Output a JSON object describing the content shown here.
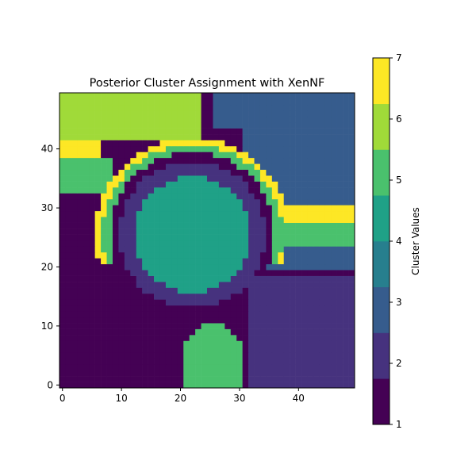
{
  "chart_data": {
    "type": "heatmap",
    "title": "Posterior Cluster Assignment with XenNF",
    "xlabel": "",
    "ylabel": "",
    "grid": false,
    "origin": "lower",
    "xlim": [
      -0.5,
      49.5
    ],
    "ylim": [
      -0.5,
      49.5
    ],
    "xticks": [
      0,
      10,
      20,
      30,
      40
    ],
    "yticks": [
      0,
      10,
      20,
      30,
      40
    ],
    "colorbar": {
      "label": "Cluster Values",
      "range": [
        1,
        7
      ],
      "ticks": [
        1,
        2,
        3,
        4,
        5,
        6,
        7
      ],
      "levels": 8,
      "colors": [
        "#440154",
        "#46327e",
        "#365c8d",
        "#277f8e",
        "#1fa187",
        "#4ac16d",
        "#a0da39",
        "#fde725"
      ]
    },
    "grid_size": [
      50,
      50
    ],
    "cluster_regions": [
      {
        "cluster": 1,
        "description": "dark outer ring and lower-left region"
      },
      {
        "cluster": 2,
        "description": "ring around central disk and lower-right block"
      },
      {
        "cluster": 3,
        "description": "upper-right background"
      },
      {
        "cluster": 4,
        "description": "central disk"
      },
      {
        "cluster": 5,
        "description": "bottom lobe and outer band"
      },
      {
        "cluster": 6,
        "description": "upper-left corner block"
      },
      {
        "cluster": 7,
        "description": "outer yellow arc"
      }
    ]
  }
}
